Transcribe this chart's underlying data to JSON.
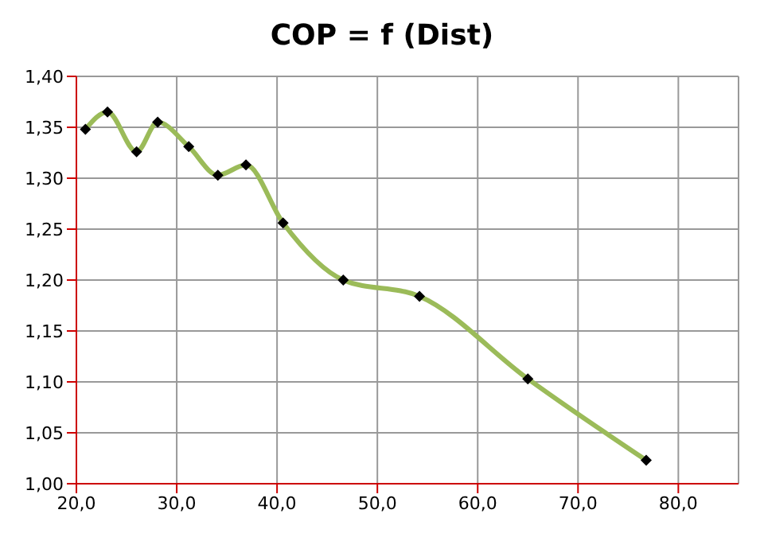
{
  "chart_data": {
    "type": "line",
    "title": "COP = f (Dist)",
    "series": [
      {
        "color": "#9bbb59",
        "x": [
          20.9,
          23.1,
          26.0,
          28.1,
          31.2,
          34.1,
          36.9,
          40.6,
          46.6,
          54.2,
          65.0,
          76.8
        ],
        "values": [
          1.348,
          1.365,
          1.326,
          1.355,
          1.331,
          1.303,
          1.313,
          1.256,
          1.2,
          1.184,
          1.103,
          1.023
        ]
      }
    ],
    "xlim": [
      20,
      86
    ],
    "xticks": [
      {
        "value": 20,
        "label": "20,0"
      },
      {
        "value": 30,
        "label": "30,0"
      },
      {
        "value": 40,
        "label": "40,0"
      },
      {
        "value": 50,
        "label": "50,0"
      },
      {
        "value": 60,
        "label": "60,0"
      },
      {
        "value": 70,
        "label": "70,0"
      },
      {
        "value": 80,
        "label": "80,0"
      }
    ],
    "ylim": [
      1,
      1.4
    ],
    "yticks": [
      {
        "value": 1,
        "label": "1,00"
      },
      {
        "value": 1.05,
        "label": "1,05"
      },
      {
        "value": 1.1,
        "label": "1,10"
      },
      {
        "value": 1.15,
        "label": "1,15"
      },
      {
        "value": 1.2,
        "label": "1,20"
      },
      {
        "value": 1.25,
        "label": "1,25"
      },
      {
        "value": 1.3,
        "label": "1,30"
      },
      {
        "value": 1.35,
        "label": "1,35"
      },
      {
        "value": 1.4,
        "label": "1,40"
      }
    ],
    "grid": true,
    "legend": false,
    "marker": "diamond",
    "line_style": "solid"
  }
}
